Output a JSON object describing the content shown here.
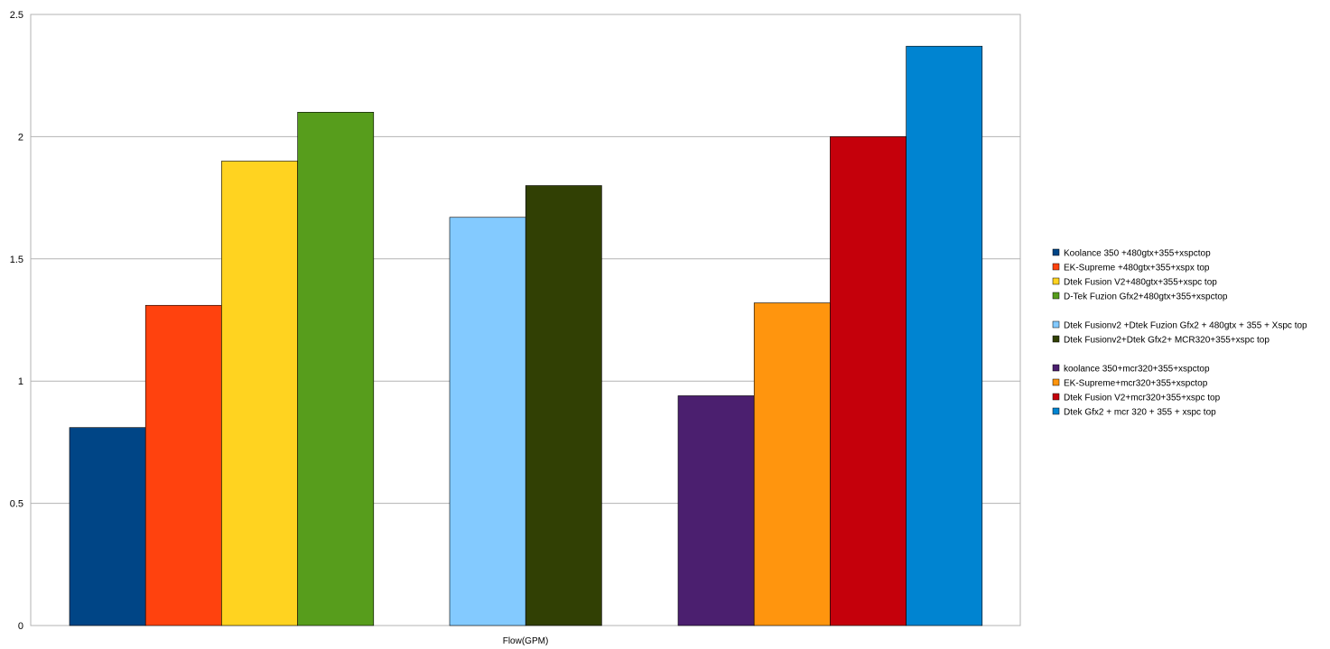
{
  "chart_data": {
    "type": "bar",
    "xlabel": "Flow(GPM)",
    "ylabel": "",
    "ylim": [
      0,
      2.5
    ],
    "yticks": [
      "0",
      "0.5",
      "1",
      "1.5",
      "2",
      "2.5"
    ],
    "grid": true,
    "legend_position": "right",
    "groups": [
      {
        "series": [
          {
            "name": "Koolance 350 +480gtx+355+xspctop",
            "value": 0.81,
            "color": "#004586"
          },
          {
            "name": "EK-Supreme +480gtx+355+xspx top",
            "value": 1.31,
            "color": "#ff420e"
          },
          {
            "name": "Dtek Fusion V2+480gtx+355+xspc top",
            "value": 1.9,
            "color": "#ffd320"
          },
          {
            "name": "D-Tek Fuzion Gfx2+480gtx+355+xspctop",
            "value": 2.1,
            "color": "#579d1c"
          }
        ]
      },
      {
        "series": [
          {
            "name": "Dtek Fusionv2 +Dtek Fuzion Gfx2 + 480gtx + 355 + Xspc top",
            "value": 1.67,
            "color": "#83caff"
          },
          {
            "name": "Dtek Fusionv2+Dtek Gfx2+ MCR320+355+xspc top",
            "value": 1.8,
            "color": "#314004"
          }
        ]
      },
      {
        "series": [
          {
            "name": "koolance 350+mcr320+355+xspctop",
            "value": 0.94,
            "color": "#4b1f6f"
          },
          {
            "name": "EK-Supreme+mcr320+355+xspctop",
            "value": 1.32,
            "color": "#ff950e"
          },
          {
            "name": "Dtek Fusion V2+mcr320+355+xspc top",
            "value": 2.0,
            "color": "#c5000b"
          },
          {
            "name": "Dtek Gfx2 + mcr 320 + 355 + xspc top",
            "value": 2.37,
            "color": "#0084d1"
          }
        ]
      }
    ]
  }
}
